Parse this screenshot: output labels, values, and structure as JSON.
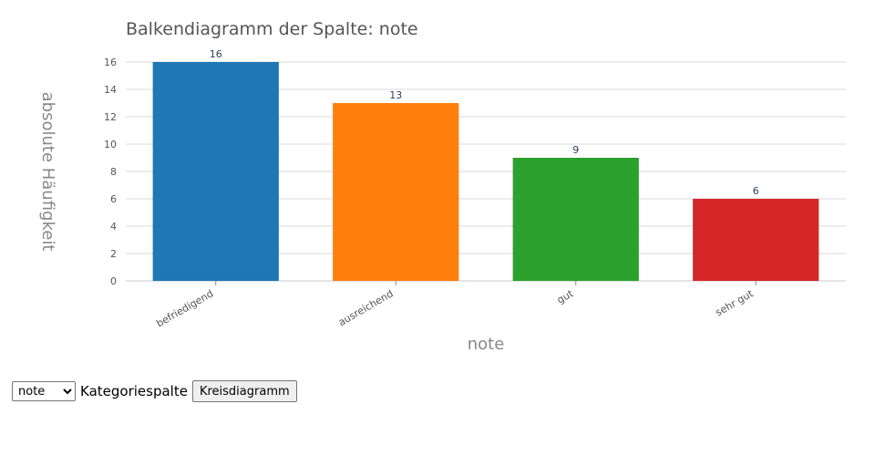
{
  "chart_data": {
    "type": "bar",
    "title": "Balkendiagramm der Spalte: note",
    "xlabel": "note",
    "ylabel": "absolute Häufigkeit",
    "categories": [
      "befriedigend",
      "ausreichend",
      "gut",
      "sehr gut"
    ],
    "values": [
      16,
      13,
      9,
      6
    ],
    "colors": [
      "#1f77b4",
      "#ff7f0e",
      "#2ca02c",
      "#d62728"
    ],
    "ylim": [
      0,
      16
    ],
    "yticks": [
      0,
      2,
      4,
      6,
      8,
      10,
      12,
      14,
      16
    ],
    "grid": true,
    "data_labels": true
  },
  "controls": {
    "column_select_value": "note",
    "column_select_options": [
      "note"
    ],
    "category_label": "Kategoriespalte",
    "pie_button_label": "Kreisdiagramm"
  }
}
